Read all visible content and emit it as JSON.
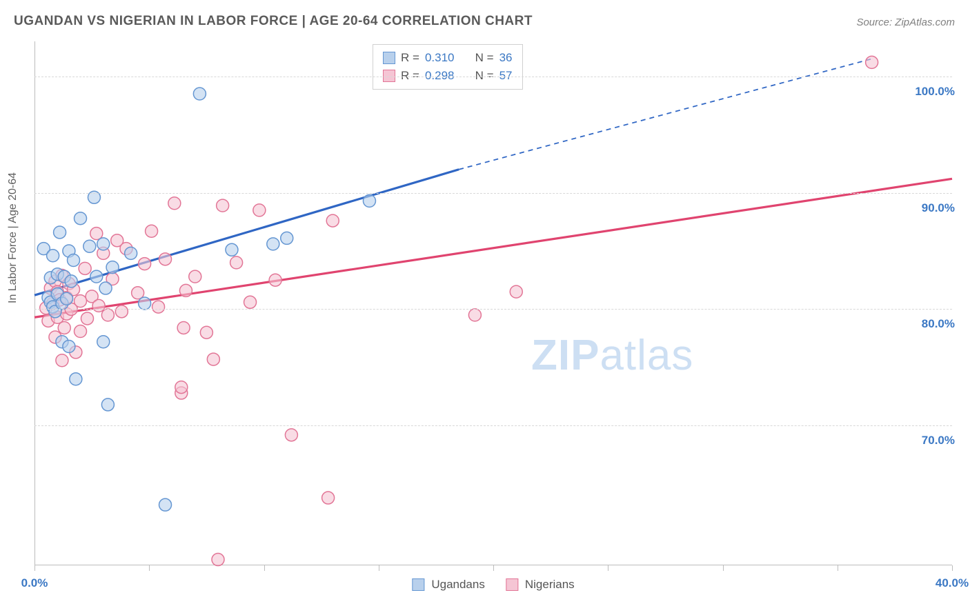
{
  "title": "UGANDAN VS NIGERIAN IN LABOR FORCE | AGE 20-64 CORRELATION CHART",
  "source": "Source: ZipAtlas.com",
  "y_axis_label": "In Labor Force | Age 20-64",
  "watermark_a": "ZIP",
  "watermark_b": "atlas",
  "chart": {
    "type": "scatter",
    "xlim": [
      0,
      40
    ],
    "ylim": [
      58,
      103
    ],
    "x_ticks": [
      0,
      5,
      10,
      15,
      20,
      25,
      30,
      35,
      40
    ],
    "x_tick_labels_shown": {
      "0": "0.0%",
      "40": "40.0%"
    },
    "y_ticks": [
      70,
      80,
      90,
      100
    ],
    "y_tick_labels": {
      "70": "70.0%",
      "80": "80.0%",
      "90": "90.0%",
      "100": "100.0%"
    },
    "x_label_color": "#3b78c4",
    "y_label_color": "#3b78c4",
    "grid_color": "#d8d8d8",
    "axis_color": "#bcbcbc",
    "background_color": "#ffffff",
    "point_radius": 9,
    "point_fill_opacity": 0.25,
    "point_stroke_width": 1.5,
    "trend_line_width": 3.2,
    "trend_dash": "7,6",
    "series": [
      {
        "name": "Ugandans",
        "label": "Ugandans",
        "color": "#6496d2",
        "fill": "#b8d0ec",
        "line_color": "#2f66c4",
        "R": "0.310",
        "N": "36",
        "trend": {
          "x1": 0,
          "y1": 81.2,
          "solid_until_x": 18.5,
          "y_at_split": 92.0,
          "x2": 36.5,
          "y2": 101.5
        },
        "points": [
          [
            0.4,
            85.2
          ],
          [
            0.6,
            81.0
          ],
          [
            0.7,
            80.6
          ],
          [
            0.7,
            82.7
          ],
          [
            0.8,
            84.6
          ],
          [
            0.8,
            80.2
          ],
          [
            0.9,
            79.8
          ],
          [
            1.0,
            83.0
          ],
          [
            1.0,
            81.3
          ],
          [
            1.1,
            86.6
          ],
          [
            1.2,
            80.5
          ],
          [
            1.2,
            77.2
          ],
          [
            1.3,
            82.8
          ],
          [
            1.4,
            80.9
          ],
          [
            1.5,
            85.0
          ],
          [
            1.5,
            76.8
          ],
          [
            1.6,
            82.4
          ],
          [
            1.7,
            84.2
          ],
          [
            1.8,
            74.0
          ],
          [
            2.0,
            87.8
          ],
          [
            2.4,
            85.4
          ],
          [
            2.6,
            89.6
          ],
          [
            2.7,
            82.8
          ],
          [
            3.0,
            85.6
          ],
          [
            3.0,
            77.2
          ],
          [
            3.1,
            81.8
          ],
          [
            3.2,
            71.8
          ],
          [
            3.4,
            83.6
          ],
          [
            4.2,
            84.8
          ],
          [
            4.8,
            80.5
          ],
          [
            5.7,
            63.2
          ],
          [
            7.2,
            98.5
          ],
          [
            8.6,
            85.1
          ],
          [
            10.4,
            85.6
          ],
          [
            11.0,
            86.1
          ],
          [
            14.6,
            89.3
          ]
        ]
      },
      {
        "name": "Nigerians",
        "label": "Nigerians",
        "color": "#e27596",
        "fill": "#f5c5d4",
        "line_color": "#e0446f",
        "R": "0.298",
        "N": "57",
        "trend": {
          "x1": 0,
          "y1": 79.3,
          "x2": 40,
          "y2": 91.2
        },
        "points": [
          [
            0.5,
            80.1
          ],
          [
            0.6,
            79.0
          ],
          [
            0.7,
            81.8
          ],
          [
            0.8,
            80.5
          ],
          [
            0.9,
            77.6
          ],
          [
            0.9,
            82.4
          ],
          [
            1.0,
            79.3
          ],
          [
            1.0,
            81.5
          ],
          [
            1.1,
            80.8
          ],
          [
            1.2,
            75.6
          ],
          [
            1.2,
            82.9
          ],
          [
            1.3,
            78.4
          ],
          [
            1.4,
            81.0
          ],
          [
            1.4,
            79.6
          ],
          [
            1.5,
            82.2
          ],
          [
            1.6,
            80.0
          ],
          [
            1.7,
            81.7
          ],
          [
            1.8,
            76.3
          ],
          [
            2.0,
            80.7
          ],
          [
            2.0,
            78.1
          ],
          [
            2.2,
            83.5
          ],
          [
            2.3,
            79.2
          ],
          [
            2.5,
            81.1
          ],
          [
            2.7,
            86.5
          ],
          [
            2.8,
            80.3
          ],
          [
            3.0,
            84.8
          ],
          [
            3.2,
            79.5
          ],
          [
            3.4,
            82.6
          ],
          [
            3.6,
            85.9
          ],
          [
            3.8,
            79.8
          ],
          [
            4.0,
            85.2
          ],
          [
            4.5,
            81.4
          ],
          [
            4.8,
            83.9
          ],
          [
            5.1,
            86.7
          ],
          [
            5.4,
            80.2
          ],
          [
            5.7,
            84.3
          ],
          [
            6.1,
            89.1
          ],
          [
            6.4,
            72.8
          ],
          [
            6.4,
            73.3
          ],
          [
            6.5,
            78.4
          ],
          [
            6.6,
            81.6
          ],
          [
            7.0,
            82.8
          ],
          [
            7.5,
            78.0
          ],
          [
            7.8,
            75.7
          ],
          [
            8.0,
            58.5
          ],
          [
            8.2,
            88.9
          ],
          [
            8.8,
            84.0
          ],
          [
            9.4,
            80.6
          ],
          [
            9.8,
            88.5
          ],
          [
            10.5,
            82.5
          ],
          [
            11.2,
            69.2
          ],
          [
            12.8,
            63.8
          ],
          [
            13.0,
            87.6
          ],
          [
            15.7,
            101.0
          ],
          [
            19.2,
            79.5
          ],
          [
            21.0,
            81.5
          ],
          [
            36.5,
            101.2
          ]
        ]
      }
    ]
  },
  "legend_top": {
    "rows": [
      {
        "sw_fill": "#b8d0ec",
        "sw_border": "#6496d2",
        "r_label": "R =",
        "r_val": "0.310",
        "n_label": "N =",
        "n_val": "36"
      },
      {
        "sw_fill": "#f5c5d4",
        "sw_border": "#e27596",
        "r_label": "R =",
        "r_val": "0.298",
        "n_label": "N =",
        "n_val": "57"
      }
    ],
    "val_color": "#3b78c4"
  },
  "legend_bottom": [
    {
      "sw_fill": "#b8d0ec",
      "sw_border": "#6496d2",
      "label": "Ugandans"
    },
    {
      "sw_fill": "#f5c5d4",
      "sw_border": "#e27596",
      "label": "Nigerians"
    }
  ]
}
